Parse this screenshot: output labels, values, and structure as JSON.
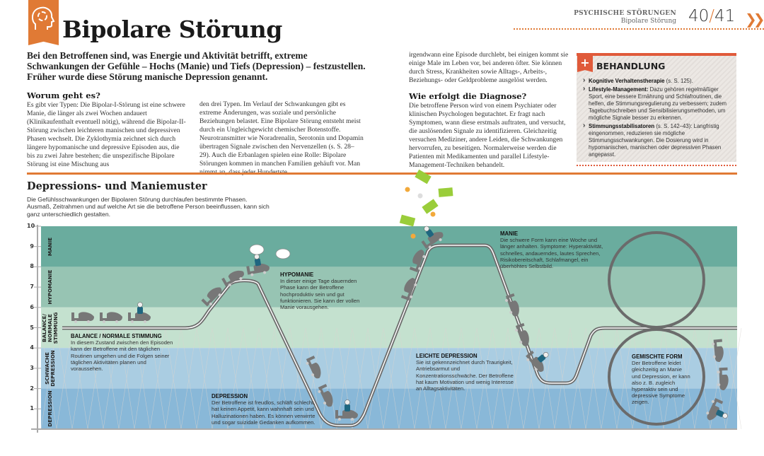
{
  "header": {
    "title": "Bipolare Störung",
    "section": "PSYCHISCHE STÖRUNGEN",
    "subsection": "Bipolare Störung",
    "page_left": "40",
    "page_sep": "/",
    "page_right": "41",
    "icon": "head-cycle-icon",
    "accent": "#e07a35"
  },
  "intro": "Bei den Betroffenen sind, was Energie und Aktivität betrifft, extreme Schwankungen der Gefühle – Hochs (Manie) und Tiefs (Depression) – festzustellen. Früher wurde diese Störung manische Depression genannt.",
  "worum": {
    "heading": "Worum geht es?",
    "text1": "Es gibt vier Typen: Die Bipolar-I-Störung ist eine schwere Manie, die länger als zwei Wochen andauert (Klinikaufenthalt eventuell nötig), während die Bipolar-II-Störung zwischen leichteren manischen und depressiven Phasen wechselt. Die Zyklothymia zeichnet sich durch längere hypomanische und depressive Episoden aus, die bis zu zwei Jahre bestehen; die unspezifische Bipolare Störung ist eine Mischung aus",
    "text2": "den drei Typen. Im Verlauf der Schwankungen gibt es extreme Änderungen, was soziale und persönliche Beziehungen belastet. Eine Bipolare Störung entsteht meist durch ein Ungleichgewicht chemischer Botenstoffe. Neurotransmitter wie Noradrenalin, Serotonin und Dopamin übertragen Signale zwischen den Nervenzellen (s. S. 28–29). Auch die Erbanlagen spielen eine Rolle: Bipolare Störungen kommen in manchen Familien gehäuft vor. Man nimmt an, dass jeder Hundertste",
    "text3": "irgendwann eine Episode durchlebt, bei einigen kommt sie einige Male im Leben vor, bei anderen öfter. Sie können durch Stress, Krankheiten sowie Alltags-, Arbeits-, Beziehungs- oder Geldprobleme ausgelöst werden."
  },
  "diagnose": {
    "heading": "Wie erfolgt die Diagnose?",
    "text": "Die betroffene Person wird von einem Psychiater oder klinischen Psychologen begutachtet. Er fragt nach Symptomen, wann diese erstmals auftraten, und versucht, die auslösenden Signale zu identifizieren. Gleichzeitig versuchen Mediziner, andere Leiden, die Schwankungen hervorrufen, zu beseitigen. Normalerweise werden die Patienten mit Medikamenten und parallel Lifestyle- Management-Techniken behandelt."
  },
  "behandlung": {
    "heading": "BEHANDLUNG",
    "icon": "plus-icon",
    "items": [
      {
        "bold": "Kognitive Verhaltenstherapie",
        "text": " (s. S. 125)."
      },
      {
        "bold": "Lifestyle-Management:",
        "text": " Dazu gehören regelmäßiger Sport, eine bessere Ernährung und Schlafroutinen, die helfen, die Stimmungsregulierung zu verbessern; zudem Tagebuchschreiben und Sensibilisierungsmethoden, um mögliche Signale besser zu erkennen."
      },
      {
        "bold": "Stimmungsstabilisatoren",
        "text": " (s. S. 142–43): Langfristig eingenommen, reduzieren sie mögliche Stimmungsschwankungen. Die Dosierung wird in hypomanischen, manischen oder depressiven Phasen angepasst."
      }
    ],
    "accent": "#e05a3a"
  },
  "diagram": {
    "heading": "Depressions- und Maniemuster",
    "description": "Die Gefühlsschwankungen der Bipolaren Störung durchlaufen bestimmte Phasen. Ausmaß, Zeitrahmen und auf welche Art sie die betroffene Person beeinflussen, kann sich ganz unterschiedlich gestalten.",
    "y_ticks": [
      "1",
      "2",
      "3",
      "4",
      "5",
      "6",
      "7",
      "8",
      "9",
      "10"
    ],
    "bands": [
      {
        "label": "MANIE",
        "range": [
          8,
          10
        ],
        "color": "#6aac9e"
      },
      {
        "label": "HYPOMANIE",
        "range": [
          6,
          8
        ],
        "color": "#97c4b3"
      },
      {
        "label": "BALANCE/ NORMALE STIMMUNG",
        "range": [
          4,
          6
        ],
        "color": "#c4e1cf"
      },
      {
        "label": "SCHWACHE DEPRESSION",
        "range": [
          2,
          4
        ],
        "color": "#aacde2"
      },
      {
        "label": "DEPRESSION",
        "range": [
          0,
          2
        ],
        "color": "#89b8d8"
      }
    ],
    "annotations": {
      "balance": {
        "title": "BALANCE / NORMALE STIMMUNG",
        "text": "In diesem Zustand zwischen den Episoden kann der Betroffene mit den täglichen Routinen umgehen und die Folgen seiner täglichen Aktivitäten planen und voraussehen."
      },
      "hypomanie": {
        "title": "HYPOMANIE",
        "text": "In dieser einige Tage dauernden Phase kann der Betroffene hochproduktiv sein und gut funktionieren. Sie kann der vollen Manie vorausgehen."
      },
      "depression": {
        "title": "DEPRESSION",
        "text": "Der Betroffene ist freudlos, schläft schlecht, hat keinen Appetit, kann wahnhaft sein und Halluzinationen haben. Es können verwirrte und sogar suizidale Gedanken aufkommen."
      },
      "manie": {
        "title": "MANIE",
        "text": "Die schwere Form kann eine Woche und länger anhalten. Symptome: Hyperaktivität, schnelles, andauerndes, lautes Sprechen, Risikobereitschaft, Schlafmangel, ein überhöhtes Selbstbild."
      },
      "leicht": {
        "title": "LEICHTE DEPRESSION",
        "text": "Sie ist gekennzeichnet durch Traurigkeit, Antriebsarmut und Konzentrationsschwäche. Der Betroffene hat kaum Motivation und wenig Interesse an Alltagsaktivitäten."
      },
      "gemischt": {
        "title": "GEMISCHTE FORM",
        "text": "Der Betroffene leidet gleichzeitig an Manie und Depression, er kann also z. B. zugleich hyperaktiv sein und depressive Symptome zeigen."
      }
    },
    "track_color": "#6b6b6b",
    "rider_color": "#1f6680",
    "money_color": "#9acd3a"
  }
}
